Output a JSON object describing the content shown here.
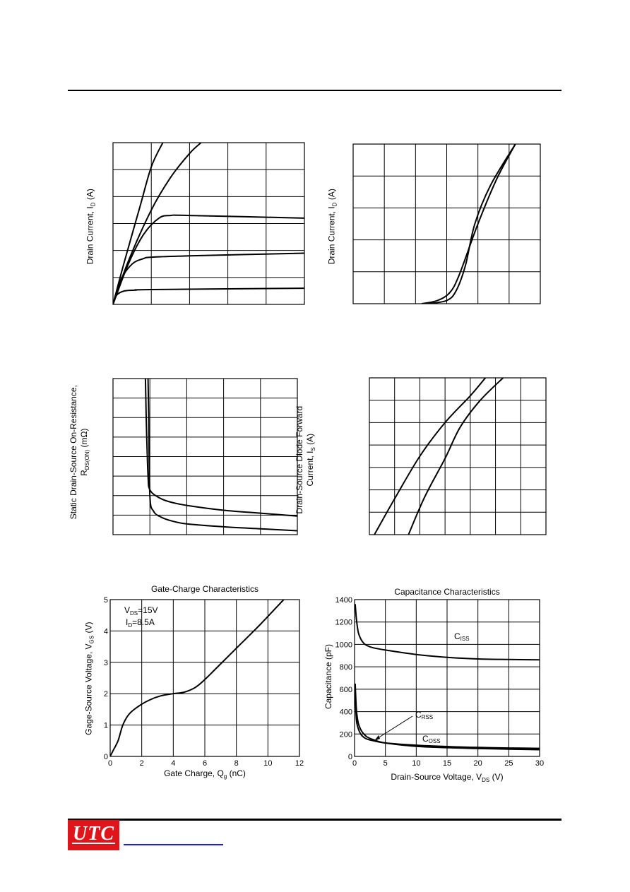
{
  "charts": {
    "output": {
      "ylabel": "Drain Current, I",
      "ylabel_sub": "D",
      "ylabel_unit": " (A)"
    },
    "transfer": {
      "ylabel": "Drain Current, I",
      "ylabel_sub": "D",
      "ylabel_unit": " (A)"
    },
    "rdson": {
      "ylabel_line1": "Static Drain-Source On-Resistance,",
      "ylabel_line2_main": "R",
      "ylabel_line2_sub": "DS(ON)",
      "ylabel_line2_unit": " (mΩ)"
    },
    "diode": {
      "ylabel_line1": "Drain-Source Diode Forward",
      "ylabel_line2_main": "Current, I",
      "ylabel_line2_sub": "S",
      "ylabel_line2_unit": " (A)"
    },
    "gate": {
      "title": "Gate-Charge Characteristics",
      "xlabel_main": "Gate Charge, Q",
      "xlabel_sub": "g",
      "xlabel_unit": " (nC)",
      "ylabel_main": "Gage-Source Voltage, V",
      "ylabel_sub": "GS",
      "ylabel_unit": " (V)",
      "ann1_main": "V",
      "ann1_sub": "DS",
      "ann1_val": "=15V",
      "ann2_main": "I",
      "ann2_sub": "D",
      "ann2_val": "=8.5A"
    },
    "cap": {
      "title": "Capacitance Characteristics",
      "xlabel_main": "Drain-Source Voltage, V",
      "xlabel_sub": "DS",
      "xlabel_unit": " (V)",
      "ylabel": "Capacitance (pF)",
      "ciss_main": "C",
      "ciss_sub": "ISS",
      "crss_main": "C",
      "crss_sub": "RSS",
      "coss_main": "C",
      "coss_sub": "OSS"
    }
  },
  "footer": {
    "logo_text": "UTC"
  },
  "chart_data": [
    {
      "type": "line",
      "id": "output",
      "xlabel": "",
      "ylabel": "Drain Current, ID (A)",
      "grid": true,
      "xlim": [
        0,
        5
      ],
      "ylim": [
        0,
        6
      ],
      "series": [
        {
          "x": [
            0,
            0.3,
            0.7,
            1.0,
            1.3
          ],
          "y": [
            0,
            1.6,
            3.6,
            5.1,
            6.0
          ]
        },
        {
          "x": [
            0,
            0.4,
            1.0,
            1.5,
            2.0,
            2.3
          ],
          "y": [
            0,
            1.6,
            3.5,
            4.7,
            5.6,
            6.0
          ]
        },
        {
          "x": [
            0,
            0.4,
            0.8,
            1.2,
            1.5,
            2.0,
            5.0
          ],
          "y": [
            0,
            1.5,
            2.6,
            3.2,
            3.3,
            3.3,
            3.2
          ]
        },
        {
          "x": [
            0,
            0.2,
            0.5,
            0.8,
            1.0,
            2.0,
            5.0
          ],
          "y": [
            0,
            0.9,
            1.5,
            1.7,
            1.75,
            1.8,
            1.9
          ]
        },
        {
          "x": [
            0,
            0.1,
            0.3,
            0.6,
            1.0,
            5.0
          ],
          "y": [
            0,
            0.35,
            0.5,
            0.53,
            0.55,
            0.6
          ]
        }
      ]
    },
    {
      "type": "line",
      "id": "transfer",
      "xlabel": "",
      "ylabel": "Drain Current, ID (A)",
      "grid": true,
      "xlim": [
        0,
        6
      ],
      "ylim": [
        0,
        5
      ],
      "series": [
        {
          "x": [
            2.2,
            2.7,
            3.1,
            3.4,
            4.0,
            4.6,
            5.2
          ],
          "y": [
            0,
            0.1,
            0.35,
            0.9,
            2.5,
            3.9,
            5.0
          ]
        },
        {
          "x": [
            2.4,
            3.0,
            3.3,
            3.6,
            3.9,
            4.4,
            5.2
          ],
          "y": [
            0,
            0.1,
            0.4,
            1.2,
            2.5,
            3.7,
            5.0
          ]
        }
      ]
    },
    {
      "type": "line",
      "id": "rdson",
      "xlabel": "",
      "ylabel": "Static Drain-Source On-Resistance, RDS(ON) (mΩ)",
      "grid": true,
      "xlim": [
        0,
        5
      ],
      "ylim": [
        0,
        8
      ],
      "series": [
        {
          "x": [
            0.88,
            0.9,
            0.95,
            1.0,
            1.2,
            1.5,
            2.0,
            3.0,
            4.0,
            5.0
          ],
          "y": [
            8.0,
            6.0,
            3.0,
            2.3,
            1.95,
            1.7,
            1.5,
            1.25,
            1.1,
            0.95
          ]
        },
        {
          "x": [
            0.95,
            0.97,
            1.0,
            1.1,
            1.3,
            1.6,
            2.0,
            3.0,
            4.0,
            5.0
          ],
          "y": [
            8.0,
            6.0,
            2.0,
            1.2,
            0.9,
            0.7,
            0.55,
            0.4,
            0.3,
            0.2
          ]
        }
      ]
    },
    {
      "type": "line",
      "id": "diode",
      "xlabel": "",
      "ylabel": "Drain-Source Diode Forward Current, IS (A)",
      "grid": true,
      "xlim": [
        0,
        7
      ],
      "ylim": [
        0,
        7
      ],
      "series": [
        {
          "x": [
            0.2,
            1.0,
            2.0,
            3.0,
            4.0,
            4.6
          ],
          "y": [
            0,
            1.6,
            3.5,
            5.0,
            6.2,
            7.0
          ]
        },
        {
          "x": [
            1.55,
            2.2,
            3.0,
            3.6,
            4.4,
            5.3
          ],
          "y": [
            0,
            1.7,
            3.4,
            4.8,
            6.0,
            7.0
          ]
        }
      ]
    },
    {
      "type": "line",
      "id": "gate",
      "title": "Gate-Charge Characteristics",
      "xlabel": "Gate Charge, Qg (nC)",
      "ylabel": "Gage-Source Voltage, VGS (V)",
      "grid": true,
      "xlim": [
        0,
        12
      ],
      "ylim": [
        0,
        5
      ],
      "xticks": [
        0,
        2,
        4,
        6,
        8,
        10,
        12
      ],
      "yticks": [
        0,
        1,
        2,
        3,
        4,
        5
      ],
      "annotations": [
        "VDS=15V",
        "ID=8.5A"
      ],
      "series": [
        {
          "x": [
            0,
            0.2,
            0.5,
            0.8,
            1.2,
            1.8,
            2.5,
            3.2,
            4.0,
            4.7,
            5.4,
            6.0,
            6.8,
            8.0,
            9.5,
            11.0
          ],
          "y": [
            0,
            0.2,
            0.5,
            1.0,
            1.35,
            1.6,
            1.8,
            1.93,
            2.0,
            2.05,
            2.2,
            2.45,
            2.85,
            3.45,
            4.2,
            5.0
          ]
        }
      ]
    },
    {
      "type": "line",
      "id": "cap",
      "title": "Capacitance Characteristics",
      "xlabel": "Drain-Source Voltage, VDS (V)",
      "ylabel": "Capacitance (pF)",
      "grid": true,
      "xlim": [
        0,
        30
      ],
      "ylim": [
        0,
        1400
      ],
      "xticks": [
        0,
        5,
        10,
        15,
        20,
        25,
        30
      ],
      "yticks": [
        0,
        200,
        400,
        600,
        800,
        1000,
        1200,
        1400
      ],
      "series": [
        {
          "name": "CISS",
          "x": [
            0.1,
            0.3,
            0.6,
            1.0,
            1.5,
            2.0,
            3.0,
            5.0,
            10.0,
            15.0,
            20.0,
            25.0,
            30.0
          ],
          "y": [
            1360,
            1230,
            1110,
            1050,
            1010,
            990,
            970,
            950,
            910,
            885,
            870,
            865,
            862
          ]
        },
        {
          "name": "CRSS",
          "x": [
            0.1,
            0.3,
            0.6,
            1.0,
            1.5,
            2.0,
            3.0,
            5.0,
            10.0,
            15.0,
            20.0,
            25.0,
            30.0
          ],
          "y": [
            650,
            420,
            300,
            240,
            200,
            175,
            150,
            120,
            90,
            78,
            70,
            65,
            60
          ]
        },
        {
          "name": "COSS",
          "x": [
            0.1,
            0.3,
            0.6,
            1.0,
            1.5,
            2.0,
            3.0,
            5.0,
            10.0,
            15.0,
            20.0,
            25.0,
            30.0
          ],
          "y": [
            560,
            330,
            250,
            200,
            170,
            155,
            140,
            120,
            100,
            88,
            80,
            75,
            72
          ]
        }
      ]
    }
  ]
}
